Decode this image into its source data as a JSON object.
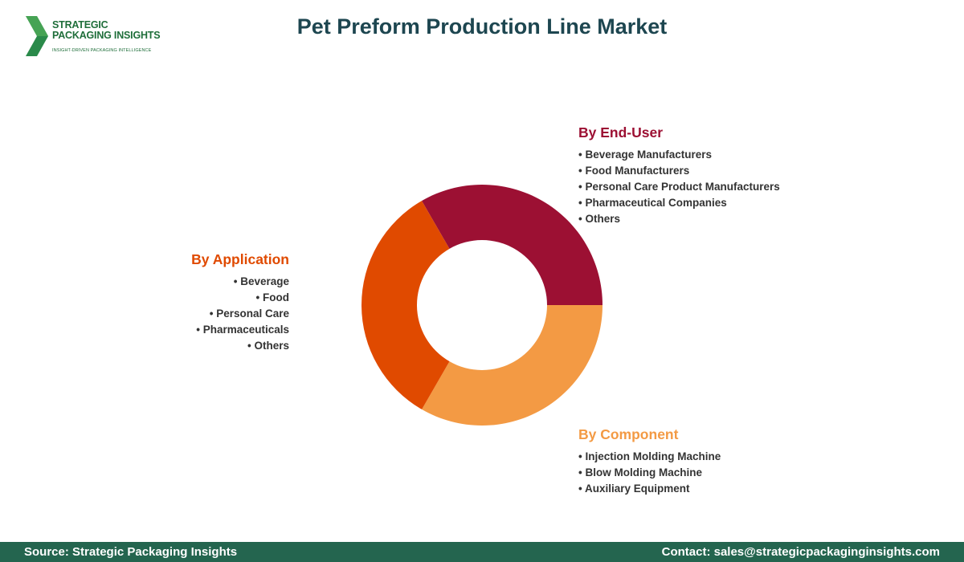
{
  "logo": {
    "line1": "STRATEGIC",
    "line2": "PACKAGING INSIGHTS",
    "tagline": "INSIGHT-DRIVEN PACKAGING INTELLIGENCE"
  },
  "title": "Pet Preform Production Line Market",
  "chart_data": {
    "type": "pie",
    "variant": "donut",
    "slices": [
      {
        "name": "By End-User",
        "value": 33.33,
        "color": "#9c1033"
      },
      {
        "name": "By Component",
        "value": 33.33,
        "color": "#f39a44"
      },
      {
        "name": "By Application",
        "value": 33.34,
        "color": "#e04a00"
      }
    ]
  },
  "segments": {
    "application": {
      "title": "By Application",
      "items": [
        "Beverage",
        "Food",
        "Personal Care",
        "Pharmaceuticals",
        "Others"
      ]
    },
    "end_user": {
      "title": "By End-User",
      "items": [
        "Beverage Manufacturers",
        "Food Manufacturers",
        "Personal Care Product Manufacturers",
        "Pharmaceutical Companies",
        "Others"
      ]
    },
    "component": {
      "title": "By Component",
      "items": [
        "Injection Molding Machine",
        "Blow Molding Machine",
        "Auxiliary Equipment"
      ]
    }
  },
  "footer": {
    "source": "Source: Strategic Packaging Insights",
    "contact": "Contact: sales@strategicpackaginginsights.com"
  }
}
